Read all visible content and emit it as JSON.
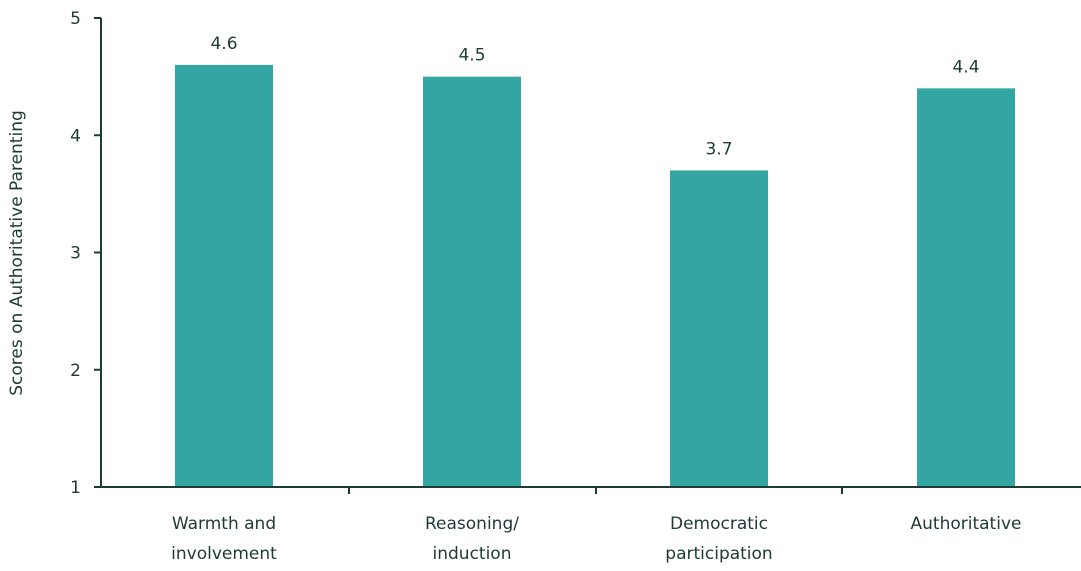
{
  "chart_data": {
    "type": "bar",
    "title": "",
    "xlabel": "",
    "ylabel": "Scores on Authoritative Parenting",
    "categories": [
      [
        "Warmth and",
        "involvement"
      ],
      [
        "Reasoning/",
        "induction"
      ],
      [
        "Democratic",
        "participation"
      ],
      [
        "Authoritative"
      ]
    ],
    "values": [
      4.6,
      4.5,
      3.7,
      4.4
    ],
    "value_labels": [
      "4.6",
      "4.5",
      "3.7",
      "4.4"
    ],
    "ylim": [
      1,
      5
    ],
    "yticks": [
      "1",
      "2",
      "3",
      "4",
      "5"
    ],
    "grid": false,
    "legend": "none",
    "colors": {
      "bar": "#33a6a4",
      "axis": "#1e3a34",
      "text": "#1e3a34"
    }
  }
}
